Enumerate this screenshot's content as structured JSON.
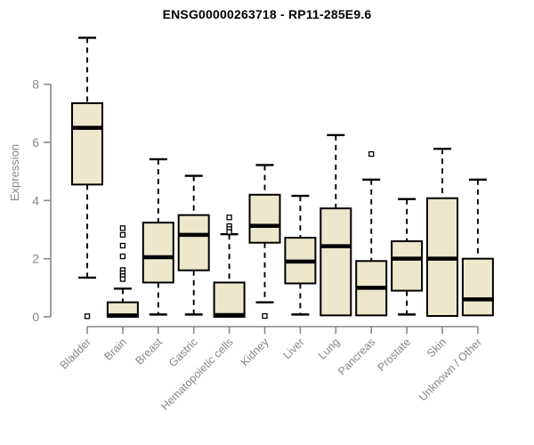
{
  "chart_data": {
    "type": "boxplot",
    "title": "ENSG00000263718 - RP11-285E9.6",
    "xlabel": "",
    "ylabel": "Expression",
    "ylim": [
      0,
      8
    ],
    "yticks": [
      0,
      2,
      4,
      6,
      8
    ],
    "grid": false,
    "legend": "none",
    "colors": {
      "box_fill": "#EDE7CB",
      "box_stroke": "#000000",
      "median": "#000000",
      "whisker": "#000000",
      "outlier_stroke": "#000000",
      "outlier_fill": "#FFFFFF",
      "axis": "#888888",
      "tick_labels": "#878787",
      "title": "#000000",
      "background": "#FFFFFF"
    },
    "categories": [
      "Bladder",
      "Brain",
      "Breast",
      "Gastric",
      "Hematopoietic cells",
      "Kidney",
      "Liver",
      "Lung",
      "Pancreas",
      "Prostate",
      "Skin",
      "Unknown / Other"
    ],
    "series": [
      {
        "name": "Bladder",
        "low": 1.35,
        "q1": 4.55,
        "median": 6.5,
        "q3": 7.35,
        "high": 9.6,
        "outliers": [
          0.02
        ]
      },
      {
        "name": "Brain",
        "low": 0,
        "q1": 0,
        "median": 0.05,
        "q3": 0.5,
        "high": 0.97,
        "outliers": [
          3.05,
          2.82,
          2.45,
          2.08,
          1.61,
          1.5,
          1.4,
          1.3
        ]
      },
      {
        "name": "Breast",
        "low": 0.08,
        "q1": 1.18,
        "median": 2.05,
        "q3": 3.24,
        "high": 5.42,
        "outliers": []
      },
      {
        "name": "Gastric",
        "low": 0.08,
        "q1": 1.6,
        "median": 2.82,
        "q3": 3.5,
        "high": 4.85,
        "outliers": []
      },
      {
        "name": "Hematopoietic cells",
        "low": 0,
        "q1": 0,
        "median": 0.06,
        "q3": 1.18,
        "high": 2.84,
        "outliers": [
          3.42,
          3.12,
          3.02,
          2.92
        ]
      },
      {
        "name": "Kidney",
        "low": 0.5,
        "q1": 2.55,
        "median": 3.13,
        "q3": 4.2,
        "high": 5.22,
        "outliers": [
          0.03
        ]
      },
      {
        "name": "Liver",
        "low": 0.08,
        "q1": 1.15,
        "median": 1.9,
        "q3": 2.72,
        "high": 4.16,
        "outliers": []
      },
      {
        "name": "Lung",
        "low": 0.03,
        "q1": 0.05,
        "median": 2.43,
        "q3": 3.73,
        "high": 6.25,
        "outliers": []
      },
      {
        "name": "Pancreas",
        "low": 0.03,
        "q1": 0.05,
        "median": 1.0,
        "q3": 1.92,
        "high": 4.72,
        "outliers": [
          5.6
        ]
      },
      {
        "name": "Prostate",
        "low": 0.08,
        "q1": 0.9,
        "median": 2.0,
        "q3": 2.6,
        "high": 4.05,
        "outliers": []
      },
      {
        "name": "Skin",
        "low": 0.02,
        "q1": 0.03,
        "median": 2.0,
        "q3": 4.08,
        "high": 5.78,
        "outliers": []
      },
      {
        "name": "Unknown / Other",
        "low": 0.03,
        "q1": 0.05,
        "median": 0.6,
        "q3": 2.0,
        "high": 4.72,
        "outliers": []
      }
    ]
  }
}
